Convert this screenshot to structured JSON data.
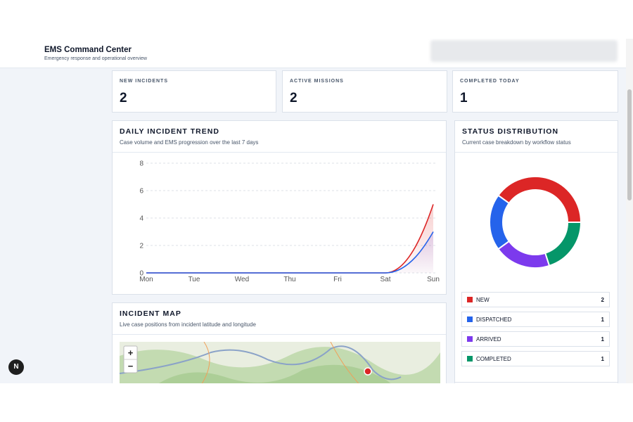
{
  "header": {
    "title": "EMS Command Center",
    "subtitle": "Emergency response and operational overview"
  },
  "stats": [
    {
      "label": "NEW INCIDENTS",
      "value": "2"
    },
    {
      "label": "ACTIVE MISSIONS",
      "value": "2"
    },
    {
      "label": "COMPLETED TODAY",
      "value": "1"
    }
  ],
  "chart_data": [
    {
      "type": "line",
      "title": "DAILY INCIDENT TREND",
      "subtitle": "Case volume and EMS progression over the last 7 days",
      "categories": [
        "Mon",
        "Tue",
        "Wed",
        "Thu",
        "Fri",
        "Sat",
        "Sun"
      ],
      "series": [
        {
          "color": "#dc2626",
          "values": [
            0,
            0,
            0,
            0,
            0,
            0,
            5
          ]
        },
        {
          "color": "#2563eb",
          "values": [
            0,
            0,
            0,
            0,
            0,
            0,
            3
          ]
        }
      ],
      "ylim": [
        0,
        8
      ],
      "yticks": [
        0,
        2,
        4,
        6,
        8
      ],
      "grid": true
    },
    {
      "type": "pie",
      "title": "STATUS DISTRIBUTION",
      "subtitle": "Current case breakdown by workflow status",
      "categories": [
        "NEW",
        "DISPATCHED",
        "ARRIVED",
        "COMPLETED"
      ],
      "values": [
        2,
        1,
        1,
        1
      ],
      "colors": [
        "#dc2626",
        "#2563eb",
        "#7c3aed",
        "#059669"
      ]
    }
  ],
  "map": {
    "title": "INCIDENT MAP",
    "subtitle": "Live case positions from incident latitude and longitude",
    "zoom_in": "+",
    "zoom_out": "−"
  },
  "dev_badge": "N"
}
